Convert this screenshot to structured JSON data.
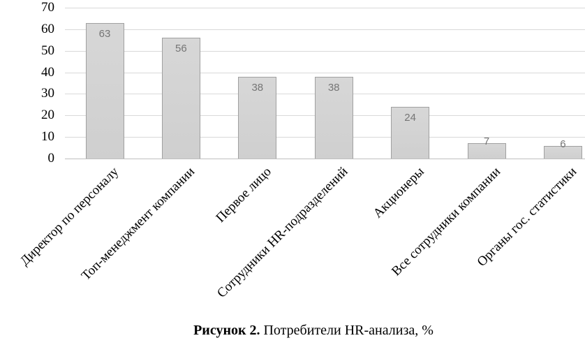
{
  "chart_data": {
    "type": "bar",
    "categories": [
      "Директор по персоналу",
      "Топ-менеджмент компании",
      "Первое лицо",
      "Сотрудники HR-подразделений",
      "Акционеры",
      "Все сотрудники компании",
      "Органы гос. статистики"
    ],
    "values": [
      63,
      56,
      38,
      38,
      24,
      7,
      6
    ],
    "title": "",
    "xlabel": "",
    "ylabel": "",
    "ylim": [
      0,
      70
    ],
    "yticks": [
      0,
      10,
      20,
      30,
      40,
      50,
      60,
      70
    ],
    "grid": "horizontal",
    "legend": "none",
    "bar_fill": "#d3d3d3",
    "bar_border": "#a0a0a0",
    "value_label_color": "#757575",
    "gridline_color": "#d9d9d9",
    "axis_line_color": "#bfbfbf"
  },
  "caption": {
    "figure_label": "Рисунок 2.",
    "figure_text": "Потребители HR-анализа, %"
  }
}
